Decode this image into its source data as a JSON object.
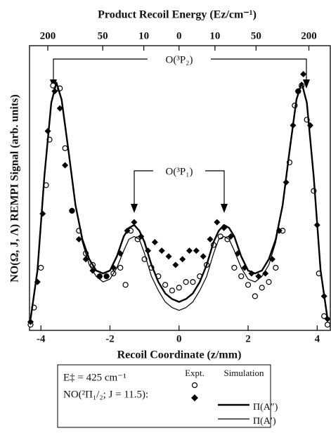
{
  "chart_data": {
    "type": "scatter",
    "x2label": "Product Recoil Energy (Ez/cm⁻¹)",
    "xlabel": "Recoil Coordinate (z/mm)",
    "ylabel": "NO(Ω, J, Λ) REMPI Signal (arb. units)",
    "xlim": [
      -4.33,
      4.38
    ],
    "ylim": [
      0,
      1
    ],
    "xticks": [
      -4,
      -2,
      0,
      2,
      4
    ],
    "x2ticks": [
      {
        "value": -3.8,
        "label": "200"
      },
      {
        "value": -2.21,
        "label": "50"
      },
      {
        "value": -1.02,
        "label": "10"
      },
      {
        "value": 0,
        "label": "0"
      },
      {
        "value": 1.04,
        "label": "10"
      },
      {
        "value": 2.23,
        "label": "50"
      },
      {
        "value": 3.76,
        "label": "200"
      }
    ],
    "annotations": [
      "O(³P₂)",
      "O(³P₁)"
    ],
    "legend": {
      "lines": [
        "E‡ = 425 cm⁻¹",
        "NO(²Π₁/₂; J = 11.5):"
      ],
      "columns": [
        "Expt.",
        "Simulation"
      ],
      "rows": [
        "Π(A″)",
        "Π(A′)"
      ]
    },
    "series": [
      {
        "marker": "open-circle",
        "color": "#000000",
        "x": [
          -4.3,
          -4.2,
          -4.0,
          -3.85,
          -3.75,
          -3.65,
          -3.55,
          -3.45,
          -3.3,
          -3.1,
          -2.9,
          -2.7,
          -2.5,
          -2.3,
          -2.1,
          -1.9,
          -1.7,
          -1.55,
          -1.4,
          -1.2,
          -1.0,
          -0.8,
          -0.6,
          -0.4,
          -0.2,
          0,
          0.2,
          0.4,
          0.6,
          0.8,
          1.0,
          1.2,
          1.4,
          1.6,
          1.8,
          2.0,
          2.2,
          2.4,
          2.6,
          2.8,
          3.0,
          3.2,
          3.35,
          3.45,
          3.55,
          3.7,
          3.9,
          4.05,
          4.2,
          4.3
        ],
        "values": [
          0.02,
          0.08,
          0.22,
          0.51,
          0.67,
          0.86,
          0.85,
          0.85,
          0.64,
          0.42,
          0.35,
          0.27,
          0.23,
          0.19,
          0.19,
          0.2,
          0.22,
          0.16,
          0.35,
          0.32,
          0.25,
          0.22,
          0.19,
          0.16,
          0.14,
          0.15,
          0.17,
          0.17,
          0.19,
          0.23,
          0.3,
          0.33,
          0.32,
          0.22,
          0.19,
          0.16,
          0.12,
          0.15,
          0.17,
          0.22,
          0.35,
          0.59,
          0.79,
          0.84,
          0.86,
          0.74,
          0.49,
          0.2,
          0.05,
          0.02
        ]
      },
      {
        "marker": "diamond",
        "color": "#000000",
        "x": [
          -4.3,
          -4.1,
          -3.95,
          -3.8,
          -3.6,
          -3.45,
          -3.3,
          -3.1,
          -2.9,
          -2.7,
          -2.5,
          -2.3,
          -2.1,
          -1.9,
          -1.7,
          -1.5,
          -1.3,
          -1.1,
          -0.9,
          -0.7,
          -0.5,
          -0.3,
          -0.1,
          0.1,
          0.3,
          0.5,
          0.7,
          0.9,
          1.1,
          1.3,
          1.5,
          1.7,
          1.9,
          2.1,
          2.3,
          2.5,
          2.7,
          2.9,
          3.1,
          3.3,
          3.45,
          3.6,
          3.8,
          4.0,
          4.2,
          4.3
        ],
        "values": [
          0.03,
          0.17,
          0.41,
          0.7,
          0.84,
          0.78,
          0.58,
          0.42,
          0.32,
          0.25,
          0.21,
          0.19,
          0.19,
          0.22,
          0.27,
          0.35,
          0.38,
          0.33,
          0.28,
          0.31,
          0.28,
          0.26,
          0.23,
          0.25,
          0.28,
          0.28,
          0.26,
          0.32,
          0.38,
          0.36,
          0.33,
          0.27,
          0.22,
          0.2,
          0.19,
          0.2,
          0.25,
          0.35,
          0.52,
          0.72,
          0.84,
          0.9,
          0.72,
          0.37,
          0.12,
          0.04
        ]
      },
      {
        "marker": "line",
        "line_width": 2.4,
        "color": "#000000",
        "x": [
          -4.3,
          -4.1,
          -3.9,
          -3.7,
          -3.55,
          -3.4,
          -3.2,
          -3.0,
          -2.8,
          -2.6,
          -2.4,
          -2.2,
          -2.0,
          -1.8,
          -1.6,
          -1.45,
          -1.3,
          -1.15,
          -1.0,
          -0.8,
          -0.6,
          -0.4,
          -0.2,
          0,
          0.2,
          0.4,
          0.6,
          0.8,
          1.0,
          1.15,
          1.3,
          1.45,
          1.6,
          1.8,
          2.0,
          2.2,
          2.4,
          2.6,
          2.8,
          3.0,
          3.2,
          3.4,
          3.55,
          3.7,
          3.9,
          4.1,
          4.3
        ],
        "values": [
          0.04,
          0.21,
          0.54,
          0.8,
          0.87,
          0.81,
          0.63,
          0.44,
          0.32,
          0.25,
          0.21,
          0.2,
          0.21,
          0.26,
          0.33,
          0.36,
          0.37,
          0.35,
          0.31,
          0.23,
          0.17,
          0.13,
          0.11,
          0.1,
          0.11,
          0.13,
          0.17,
          0.23,
          0.31,
          0.35,
          0.37,
          0.36,
          0.33,
          0.26,
          0.21,
          0.2,
          0.21,
          0.25,
          0.32,
          0.44,
          0.63,
          0.81,
          0.87,
          0.8,
          0.54,
          0.21,
          0.04
        ]
      },
      {
        "marker": "line",
        "line_width": 1.2,
        "color": "#000000",
        "x": [
          -4.3,
          -4.1,
          -3.9,
          -3.7,
          -3.55,
          -3.4,
          -3.2,
          -3.0,
          -2.8,
          -2.6,
          -2.4,
          -2.2,
          -2.0,
          -1.8,
          -1.6,
          -1.45,
          -1.3,
          -1.15,
          -1.0,
          -0.8,
          -0.6,
          -0.4,
          -0.2,
          0,
          0.2,
          0.4,
          0.6,
          0.8,
          1.0,
          1.15,
          1.3,
          1.45,
          1.6,
          1.8,
          2.0,
          2.2,
          2.4,
          2.6,
          2.8,
          3.0,
          3.2,
          3.4,
          3.55,
          3.7,
          3.9,
          4.1,
          4.3
        ],
        "values": [
          0.04,
          0.21,
          0.54,
          0.8,
          0.87,
          0.81,
          0.63,
          0.44,
          0.31,
          0.23,
          0.19,
          0.17,
          0.18,
          0.22,
          0.28,
          0.32,
          0.33,
          0.32,
          0.27,
          0.19,
          0.14,
          0.1,
          0.08,
          0.07,
          0.08,
          0.1,
          0.14,
          0.19,
          0.27,
          0.32,
          0.33,
          0.32,
          0.28,
          0.22,
          0.18,
          0.17,
          0.19,
          0.23,
          0.31,
          0.44,
          0.63,
          0.81,
          0.87,
          0.8,
          0.54,
          0.21,
          0.04
        ]
      }
    ]
  }
}
